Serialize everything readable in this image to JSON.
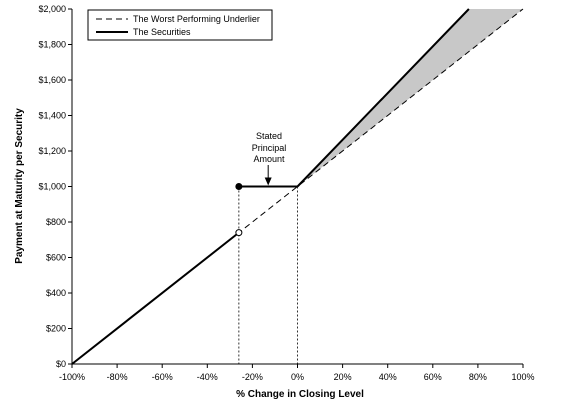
{
  "chart_data": {
    "type": "line",
    "xlabel": "% Change in Closing Level",
    "ylabel": "Payment at Maturity per Security",
    "xlim": [
      -100,
      100
    ],
    "ylim": [
      0,
      2000
    ],
    "x_ticks": [
      -100,
      -80,
      -60,
      -40,
      -20,
      0,
      20,
      40,
      60,
      80,
      100
    ],
    "x_tick_labels": [
      "-100%",
      "-80%",
      "-60%",
      "-40%",
      "-20%",
      "0%",
      "20%",
      "40%",
      "60%",
      "80%",
      "100%"
    ],
    "y_ticks": [
      0,
      200,
      400,
      600,
      800,
      1000,
      1200,
      1400,
      1600,
      1800,
      2000
    ],
    "y_tick_labels": [
      "$0",
      "$200",
      "$400",
      "$600",
      "$800",
      "$1,000",
      "$1,200",
      "$1,400",
      "$1,600",
      "$1,800",
      "$2,000"
    ],
    "legend": {
      "position": "top-left",
      "entries": [
        "The Worst Performing Underlier",
        "The Securities"
      ]
    },
    "series": [
      {
        "name": "The Worst Performing Underlier",
        "style": "dashed",
        "x": [
          -100,
          100
        ],
        "y": [
          0,
          2000
        ]
      },
      {
        "name": "The Securities",
        "style": "solid",
        "segments": [
          {
            "x": [
              -100,
              -26
            ],
            "y": [
              0,
              740
            ]
          },
          {
            "x": [
              -26,
              0
            ],
            "y": [
              1000,
              1000
            ]
          },
          {
            "x": [
              0,
              76
            ],
            "y": [
              1000,
              2000
            ]
          }
        ]
      }
    ],
    "markers": [
      {
        "x": -26,
        "y": 1000,
        "fill": "filled"
      },
      {
        "x": -26,
        "y": 740,
        "fill": "open"
      }
    ],
    "vertical_guides": [
      -26,
      0
    ],
    "shaded_region": {
      "color": "#c8c8c8",
      "x": [
        0,
        76,
        100
      ],
      "y_upper": [
        1000,
        2000,
        2000
      ],
      "y_lower": [
        1000,
        1760,
        2000
      ]
    },
    "annotation": {
      "lines": [
        "Stated",
        "Principal",
        "Amount"
      ],
      "arrow_x": -13,
      "arrow_to_y": 1000
    },
    "grid": false
  }
}
